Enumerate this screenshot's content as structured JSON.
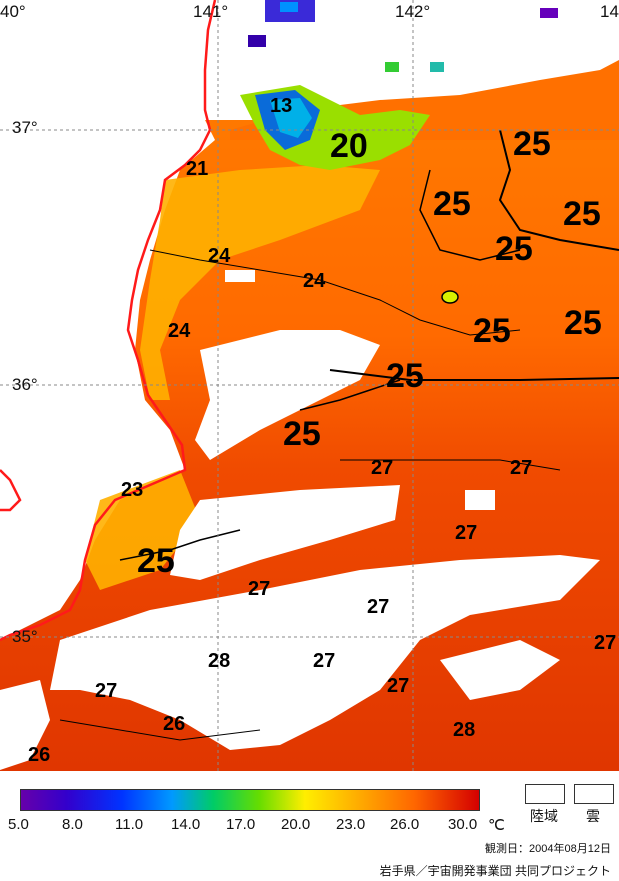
{
  "map": {
    "longitude_labels": [
      "40°",
      "141°",
      "142°",
      "14"
    ],
    "latitude_labels": [
      "37°",
      "36°",
      "35°"
    ],
    "contour_labels": [
      "13",
      "20",
      "21",
      "24",
      "24",
      "24",
      "25",
      "25",
      "25",
      "25",
      "25",
      "25",
      "25",
      "25",
      "23",
      "25",
      "27",
      "27",
      "27",
      "27",
      "27",
      "27",
      "27",
      "27",
      "28",
      "27",
      "26",
      "26",
      "28"
    ],
    "colors": {
      "cloud": "#ffffff",
      "coastline": "#ff1a1a",
      "sst_hot": "#e23200",
      "sst_warm": "#ff6a00",
      "sst_mid": "#ff9a00",
      "sst_yellow": "#ffd000",
      "sst_green": "#4cc900",
      "sst_blue": "#0044ff"
    }
  },
  "legend": {
    "ticks": [
      "5.0",
      "8.0",
      "11.0",
      "14.0",
      "17.0",
      "20.0",
      "23.0",
      "26.0",
      "30.0"
    ],
    "unit": "℃",
    "land_label": "陸域",
    "cloud_label": "雲",
    "observation_date": "観測日：2004年08月12日",
    "credit": "岩手県／宇宙開発事業団 共同プロジェクト"
  }
}
